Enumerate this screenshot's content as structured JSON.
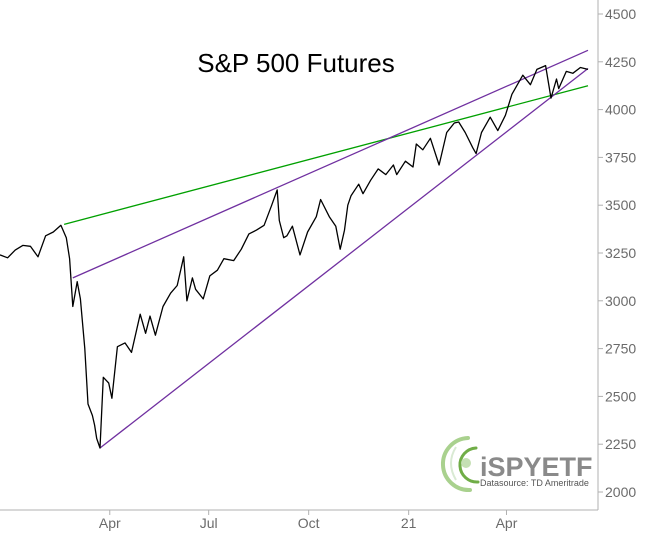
{
  "chart_data": {
    "type": "line",
    "title": "S&P 500 Futures",
    "y_axis": {
      "position": "right",
      "ylim": [
        2000,
        4500
      ],
      "ticks": [
        2000,
        2250,
        2500,
        2750,
        3000,
        3250,
        3500,
        3750,
        4000,
        4250,
        4500
      ]
    },
    "x_axis": {
      "tick_labels": [
        "Apr",
        "Jul",
        "Oct",
        "21",
        "Apr"
      ],
      "tick_dates": [
        "2020-04-01",
        "2020-07-01",
        "2020-10-01",
        "2021-01-01",
        "2021-04-01"
      ],
      "range": [
        "2019-12-22",
        "2021-06-15"
      ]
    },
    "grid": false,
    "series": [
      {
        "color": "#000000",
        "points": [
          [
            "2019-12-22",
            3240
          ],
          [
            "2019-12-29",
            3225
          ],
          [
            "2020-01-05",
            3265
          ],
          [
            "2020-01-12",
            3290
          ],
          [
            "2020-01-19",
            3285
          ],
          [
            "2020-01-26",
            3230
          ],
          [
            "2020-02-02",
            3340
          ],
          [
            "2020-02-09",
            3360
          ],
          [
            "2020-02-16",
            3395
          ],
          [
            "2020-02-21",
            3330
          ],
          [
            "2020-02-24",
            3220
          ],
          [
            "2020-02-27",
            2970
          ],
          [
            "2020-03-02",
            3100
          ],
          [
            "2020-03-05",
            3010
          ],
          [
            "2020-03-09",
            2750
          ],
          [
            "2020-03-12",
            2460
          ],
          [
            "2020-03-16",
            2400
          ],
          [
            "2020-03-18",
            2350
          ],
          [
            "2020-03-20",
            2280
          ],
          [
            "2020-03-23",
            2230
          ],
          [
            "2020-03-26",
            2600
          ],
          [
            "2020-03-31",
            2570
          ],
          [
            "2020-04-03",
            2490
          ],
          [
            "2020-04-08",
            2760
          ],
          [
            "2020-04-15",
            2780
          ],
          [
            "2020-04-21",
            2730
          ],
          [
            "2020-04-29",
            2930
          ],
          [
            "2020-05-04",
            2830
          ],
          [
            "2020-05-08",
            2920
          ],
          [
            "2020-05-13",
            2820
          ],
          [
            "2020-05-20",
            2970
          ],
          [
            "2020-05-27",
            3040
          ],
          [
            "2020-06-02",
            3080
          ],
          [
            "2020-06-08",
            3230
          ],
          [
            "2020-06-11",
            3000
          ],
          [
            "2020-06-16",
            3120
          ],
          [
            "2020-06-19",
            3060
          ],
          [
            "2020-06-26",
            3010
          ],
          [
            "2020-07-02",
            3130
          ],
          [
            "2020-07-09",
            3160
          ],
          [
            "2020-07-15",
            3220
          ],
          [
            "2020-07-24",
            3210
          ],
          [
            "2020-07-31",
            3270
          ],
          [
            "2020-08-07",
            3350
          ],
          [
            "2020-08-14",
            3370
          ],
          [
            "2020-08-21",
            3395
          ],
          [
            "2020-08-28",
            3500
          ],
          [
            "2020-09-02",
            3580
          ],
          [
            "2020-09-04",
            3420
          ],
          [
            "2020-09-08",
            3330
          ],
          [
            "2020-09-11",
            3340
          ],
          [
            "2020-09-16",
            3390
          ],
          [
            "2020-09-23",
            3240
          ],
          [
            "2020-09-30",
            3360
          ],
          [
            "2020-10-08",
            3440
          ],
          [
            "2020-10-12",
            3530
          ],
          [
            "2020-10-20",
            3440
          ],
          [
            "2020-10-26",
            3390
          ],
          [
            "2020-10-30",
            3270
          ],
          [
            "2020-11-03",
            3370
          ],
          [
            "2020-11-06",
            3500
          ],
          [
            "2020-11-09",
            3550
          ],
          [
            "2020-11-16",
            3610
          ],
          [
            "2020-11-20",
            3560
          ],
          [
            "2020-11-27",
            3630
          ],
          [
            "2020-12-04",
            3690
          ],
          [
            "2020-12-11",
            3660
          ],
          [
            "2020-12-18",
            3710
          ],
          [
            "2020-12-21",
            3660
          ],
          [
            "2020-12-29",
            3730
          ],
          [
            "2021-01-05",
            3700
          ],
          [
            "2021-01-08",
            3820
          ],
          [
            "2021-01-14",
            3790
          ],
          [
            "2021-01-21",
            3850
          ],
          [
            "2021-01-29",
            3710
          ],
          [
            "2021-02-05",
            3880
          ],
          [
            "2021-02-12",
            3930
          ],
          [
            "2021-02-16",
            3935
          ],
          [
            "2021-02-22",
            3880
          ],
          [
            "2021-03-01",
            3800
          ],
          [
            "2021-03-04",
            3770
          ],
          [
            "2021-03-09",
            3880
          ],
          [
            "2021-03-17",
            3960
          ],
          [
            "2021-03-24",
            3890
          ],
          [
            "2021-03-31",
            3970
          ],
          [
            "2021-04-06",
            4080
          ],
          [
            "2021-04-16",
            4180
          ],
          [
            "2021-04-23",
            4130
          ],
          [
            "2021-04-29",
            4210
          ],
          [
            "2021-05-07",
            4230
          ],
          [
            "2021-05-12",
            4060
          ],
          [
            "2021-05-17",
            4160
          ],
          [
            "2021-05-19",
            4110
          ],
          [
            "2021-05-26",
            4200
          ],
          [
            "2021-06-01",
            4190
          ],
          [
            "2021-06-08",
            4220
          ],
          [
            "2021-06-15",
            4210
          ]
        ]
      }
    ],
    "trendlines": [
      {
        "color": "#00a000",
        "points": [
          [
            "2020-02-19",
            3400
          ],
          [
            "2021-06-15",
            4125
          ]
        ]
      },
      {
        "color": "#7030a0",
        "points": [
          [
            "2020-02-27",
            3120
          ],
          [
            "2021-06-15",
            4310
          ]
        ]
      },
      {
        "color": "#7030a0",
        "points": [
          [
            "2020-03-23",
            2230
          ],
          [
            "2021-06-15",
            4215
          ]
        ]
      }
    ]
  },
  "watermark": {
    "brand": "iSPYETF",
    "datasource": "Datasource: TD Ameritrade"
  },
  "colors": {
    "price_line": "#000000",
    "green_trendline": "#00a000",
    "purple_trendline": "#7030a0",
    "axis": "#b0b0b0",
    "tick_text": "#6b6b6b"
  }
}
